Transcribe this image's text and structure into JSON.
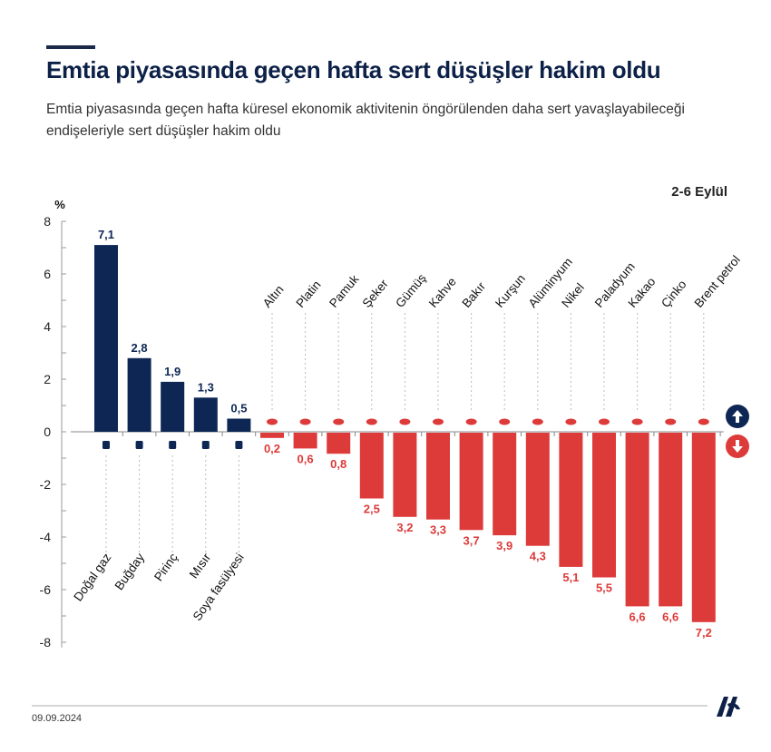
{
  "title": "Emtia piyasasında geçen hafta sert düşüşler hakim oldu",
  "subtitle": "Emtia piyasasında geçen hafta küresel ekonomik aktivitenin öngörülenden daha sert yavaşlayabileceği endişeleriyle sert düşüşler hakim oldu",
  "period": "2-6 Eylül",
  "date": "09.09.2024",
  "logo_text": "AA",
  "colors": {
    "up": "#0d2654",
    "down": "#dd3a3a"
  },
  "chart_data": {
    "type": "bar",
    "ylabel": "%",
    "ylim": [
      -8,
      8
    ],
    "yticks": [
      8,
      6,
      4,
      2,
      0,
      -2,
      -4,
      -6,
      -8
    ],
    "legend": [
      {
        "icon": "arrow-up-icon",
        "color": "#0d2654"
      },
      {
        "icon": "arrow-down-icon",
        "color": "#dd3a3a"
      }
    ],
    "categories": [
      "Doğal gaz",
      "Buğday",
      "Pirinç",
      "Mısır",
      "Soya fasülyesi",
      "Altın",
      "Platin",
      "Pamuk",
      "Şeker",
      "Gümüş",
      "Kahve",
      "Bakır",
      "Kurşun",
      "Alüminyum",
      "Nikel",
      "Paladyum",
      "Kakao",
      "Çinko",
      "Brent petrol"
    ],
    "values": [
      7.1,
      2.8,
      1.9,
      1.3,
      0.5,
      -0.2,
      -0.6,
      -0.8,
      -2.5,
      -3.2,
      -3.3,
      -3.7,
      -3.9,
      -4.3,
      -5.1,
      -5.5,
      -6.6,
      -6.6,
      -7.2
    ],
    "value_labels": [
      "7,1",
      "2,8",
      "1,9",
      "1,3",
      "0,5",
      "0,2",
      "0,6",
      "0,8",
      "2,5",
      "3,2",
      "3,3",
      "3,7",
      "3,9",
      "4,3",
      "5,1",
      "5,5",
      "6,6",
      "6,6",
      "7,2"
    ],
    "icons": [
      "gas-icon",
      "wheat-icon",
      "rice-icon",
      "corn-icon",
      "soybean-icon",
      "gold-bars-icon",
      "platinum-bars-icon",
      "cotton-icon",
      "sugar-icon",
      "silver-bars-icon",
      "coffee-icon",
      "copper-bars-icon",
      "lead-bars-icon",
      "aluminium-bars-icon",
      "nickel-bars-icon",
      "palladium-bars-icon",
      "cocoa-icon",
      "zinc-bars-icon",
      "oil-barrel-icon"
    ]
  }
}
